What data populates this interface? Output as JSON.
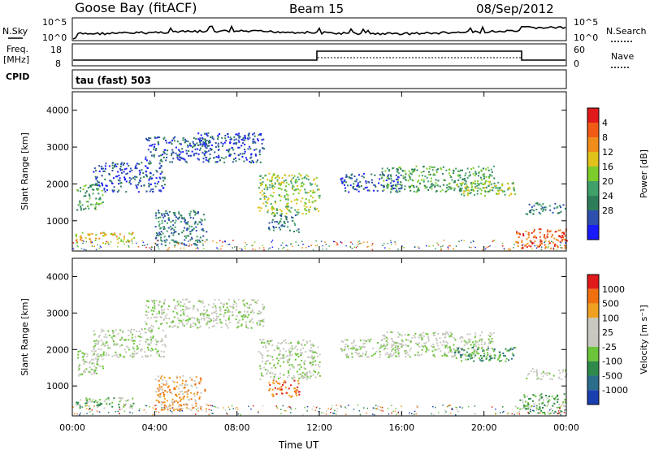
{
  "header": {
    "station": "Goose Bay (fitACF)",
    "beam": "Beam 15",
    "date": "08/Sep/2012"
  },
  "top_panels": {
    "nsky_label": "N.Sky",
    "nsky_ticks": [
      "10^5",
      "10^0"
    ],
    "nsearch_label": "N.Search",
    "nsearch_ticks": [
      "10^5",
      "10^0"
    ],
    "freq_label": "Freq.",
    "freq_unit": "[MHz]",
    "freq_ticks": [
      "18",
      "8"
    ],
    "nave_label": "Nave",
    "nave_ticks": [
      "60",
      "0"
    ],
    "cpid_label": "CPID",
    "cpid_text": "tau (fast) 503"
  },
  "colors": {
    "frame": "#000000",
    "bg": "#ffffff"
  },
  "chart_data": [
    {
      "type": "heatmap",
      "name": "power",
      "ylabel": "Slant Range [km]",
      "xlabel": "Time UT",
      "xlim": [
        0,
        24
      ],
      "ylim": [
        180,
        4500
      ],
      "x_ticks": [
        "00:00",
        "04:00",
        "08:00",
        "12:00",
        "16:00",
        "20:00",
        "00:00"
      ],
      "x_tick_values": [
        0,
        4,
        8,
        12,
        16,
        20,
        24
      ],
      "y_ticks": [
        "1000",
        "2000",
        "3000",
        "4000"
      ],
      "y_tick_values": [
        1000,
        2000,
        3000,
        4000
      ],
      "colorbar": {
        "label": "Power [dB]",
        "ticks": [
          "4",
          "8",
          "12",
          "16",
          "20",
          "24",
          "28"
        ],
        "colors": [
          "#1a1aff",
          "#2d4fae",
          "#2e7d5a",
          "#3fa06a",
          "#7ccc2c",
          "#e0c21a",
          "#f08c1a",
          "#f05a14",
          "#e01a1a"
        ]
      },
      "regions": [
        {
          "t": [
            0.2,
            1.5
          ],
          "r": [
            1300,
            2000
          ],
          "level": 3
        },
        {
          "t": [
            0.1,
            3.0
          ],
          "r": [
            400,
            700
          ],
          "level": 5
        },
        {
          "t": [
            1.0,
            4.5
          ],
          "r": [
            1800,
            2600
          ],
          "level": 1
        },
        {
          "t": [
            3.5,
            6.5
          ],
          "r": [
            2600,
            3300
          ],
          "level": 1
        },
        {
          "t": [
            6.0,
            9.3
          ],
          "r": [
            2600,
            3400
          ],
          "level": 1
        },
        {
          "t": [
            4.0,
            6.5
          ],
          "r": [
            350,
            1300
          ],
          "level": 2
        },
        {
          "t": [
            9.0,
            12.0
          ],
          "r": [
            1200,
            2300
          ],
          "level": 4
        },
        {
          "t": [
            9.5,
            11.0
          ],
          "r": [
            700,
            1200
          ],
          "level": 2
        },
        {
          "t": [
            13.0,
            16.0
          ],
          "r": [
            1800,
            2300
          ],
          "level": 1
        },
        {
          "t": [
            15.0,
            20.5
          ],
          "r": [
            1800,
            2500
          ],
          "level": 3
        },
        {
          "t": [
            18.5,
            21.5
          ],
          "r": [
            1700,
            2100
          ],
          "level": 4
        },
        {
          "t": [
            21.5,
            24.0
          ],
          "r": [
            250,
            800
          ],
          "level": 7
        },
        {
          "t": [
            22.0,
            24.0
          ],
          "r": [
            1200,
            1500
          ],
          "level": 2
        }
      ]
    },
    {
      "type": "heatmap",
      "name": "velocity",
      "ylabel": "Slant Range [km]",
      "xlabel": "Time UT",
      "xlim": [
        0,
        24
      ],
      "ylim": [
        180,
        4500
      ],
      "x_ticks": [
        "00:00",
        "04:00",
        "08:00",
        "12:00",
        "16:00",
        "20:00",
        "00:00"
      ],
      "x_tick_values": [
        0,
        4,
        8,
        12,
        16,
        20,
        24
      ],
      "y_ticks": [
        "1000",
        "2000",
        "3000",
        "4000"
      ],
      "y_tick_values": [
        1000,
        2000,
        3000,
        4000
      ],
      "colorbar": {
        "label": "Velocity [m s⁻¹]",
        "ticks": [
          "1000",
          "500",
          "100",
          "25",
          "-25",
          "-100",
          "-500",
          "-1000"
        ],
        "colors": [
          "#1a3fb0",
          "#2a6e8c",
          "#2e8a4a",
          "#6cc43a",
          "#c8c8c0",
          "#c8c8c0",
          "#f0a020",
          "#f07010",
          "#e01a1a"
        ]
      },
      "regions": [
        {
          "t": [
            0.2,
            1.5
          ],
          "r": [
            1300,
            2000
          ],
          "level": 4
        },
        {
          "t": [
            0.1,
            3.0
          ],
          "r": [
            400,
            700
          ],
          "level": 3
        },
        {
          "t": [
            1.0,
            4.5
          ],
          "r": [
            1800,
            2600
          ],
          "level": 4
        },
        {
          "t": [
            3.5,
            9.3
          ],
          "r": [
            2600,
            3400
          ],
          "level": 4
        },
        {
          "t": [
            4.0,
            6.5
          ],
          "r": [
            350,
            1300
          ],
          "level": 6
        },
        {
          "t": [
            9.0,
            12.0
          ],
          "r": [
            1200,
            2300
          ],
          "level": 4
        },
        {
          "t": [
            9.5,
            11.0
          ],
          "r": [
            700,
            1200
          ],
          "level": 7
        },
        {
          "t": [
            13.0,
            16.0
          ],
          "r": [
            1800,
            2300
          ],
          "level": 4
        },
        {
          "t": [
            15.0,
            20.5
          ],
          "r": [
            1800,
            2500
          ],
          "level": 4
        },
        {
          "t": [
            18.5,
            21.5
          ],
          "r": [
            1700,
            2100
          ],
          "level": 2
        },
        {
          "t": [
            21.5,
            24.0
          ],
          "r": [
            250,
            800
          ],
          "level": 3
        },
        {
          "t": [
            22.0,
            24.0
          ],
          "r": [
            1200,
            1500
          ],
          "level": 4
        }
      ]
    }
  ]
}
